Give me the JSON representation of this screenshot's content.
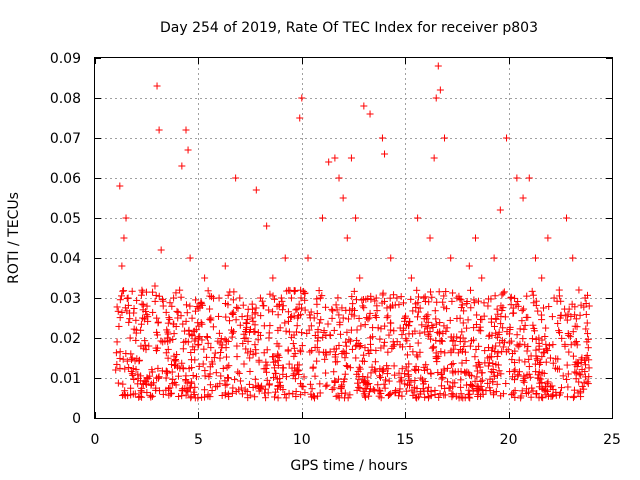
{
  "chart_data": {
    "type": "scatter",
    "title": "Day 254 of 2019, Rate Of TEC Index for receiver p803",
    "xlabel": "GPS time / hours",
    "ylabel": "ROTI / TECUs",
    "xlim": [
      0,
      25
    ],
    "ylim": [
      0,
      0.09
    ],
    "xticks": [
      0,
      5,
      10,
      15,
      20,
      25
    ],
    "xtick_labels": [
      "0",
      "5",
      "10",
      "15",
      "20",
      "25"
    ],
    "yticks": [
      0,
      0.01,
      0.02,
      0.03,
      0.04,
      0.05,
      0.06,
      0.07,
      0.08,
      0.09
    ],
    "ytick_labels": [
      "0",
      "0.01",
      "0.02",
      "0.03",
      "0.04",
      "0.05",
      "0.06",
      "0.07",
      "0.08",
      "0.09"
    ],
    "grid": true,
    "marker": "+",
    "color": "#ff0000",
    "series": [
      {
        "name": "ROTI p803",
        "x": [
          1.0,
          1.2,
          1.3,
          1.4,
          1.5,
          1.6,
          1.7,
          1.8,
          2.0,
          2.3,
          2.6,
          2.9,
          3.0,
          3.1,
          3.2,
          3.3,
          3.5,
          3.8,
          4.0,
          4.2,
          4.4,
          4.5,
          4.6,
          5.0,
          5.3,
          5.6,
          6.0,
          6.3,
          6.6,
          6.8,
          7.0,
          7.3,
          7.6,
          7.8,
          8.0,
          8.3,
          8.6,
          8.9,
          9.2,
          9.5,
          9.8,
          9.9,
          10.0,
          10.3,
          10.6,
          10.9,
          11.0,
          11.3,
          11.6,
          11.8,
          12.0,
          12.2,
          12.4,
          12.6,
          12.8,
          13.0,
          13.3,
          13.6,
          13.9,
          14.0,
          14.3,
          14.6,
          15.0,
          15.3,
          15.6,
          15.9,
          16.2,
          16.4,
          16.5,
          16.6,
          16.7,
          16.9,
          17.2,
          17.5,
          17.8,
          18.1,
          18.4,
          18.7,
          19.0,
          19.3,
          19.6,
          19.9,
          20.1,
          20.4,
          20.7,
          21.0,
          21.3,
          21.6,
          21.9,
          22.2,
          22.5,
          22.8,
          23.1,
          23.4,
          23.7,
          23.9
        ],
        "y": [
          0.012,
          0.058,
          0.038,
          0.045,
          0.05,
          0.03,
          0.02,
          0.015,
          0.022,
          0.025,
          0.018,
          0.033,
          0.083,
          0.072,
          0.042,
          0.028,
          0.02,
          0.03,
          0.025,
          0.063,
          0.072,
          0.067,
          0.04,
          0.02,
          0.035,
          0.025,
          0.03,
          0.038,
          0.022,
          0.06,
          0.03,
          0.02,
          0.025,
          0.057,
          0.03,
          0.048,
          0.035,
          0.028,
          0.04,
          0.03,
          0.025,
          0.075,
          0.08,
          0.04,
          0.025,
          0.03,
          0.05,
          0.064,
          0.065,
          0.06,
          0.055,
          0.045,
          0.065,
          0.05,
          0.035,
          0.078,
          0.076,
          0.03,
          0.07,
          0.066,
          0.04,
          0.03,
          0.025,
          0.035,
          0.05,
          0.03,
          0.045,
          0.065,
          0.08,
          0.088,
          0.082,
          0.07,
          0.04,
          0.03,
          0.02,
          0.038,
          0.045,
          0.035,
          0.028,
          0.04,
          0.052,
          0.07,
          0.03,
          0.06,
          0.055,
          0.06,
          0.04,
          0.035,
          0.045,
          0.03,
          0.025,
          0.05,
          0.04,
          0.032,
          0.03,
          0.028
        ]
      }
    ],
    "dense_band": {
      "x_range": [
        1.0,
        23.9
      ],
      "y_range": [
        0.005,
        0.032
      ]
    }
  }
}
